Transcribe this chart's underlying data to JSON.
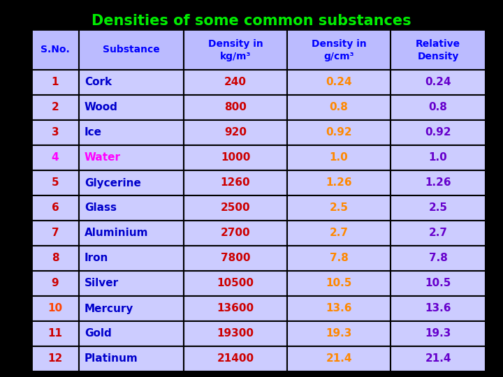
{
  "title": "Densities of some common substances",
  "title_color": "#00ee00",
  "background_color": "#000000",
  "header_bg_color": "#bbbbff",
  "row_bg_color": "#ccccff",
  "border_color": "#000000",
  "col_headers_line1": [
    "S.No.",
    "Substance",
    "Density in",
    "Density in",
    "Relative"
  ],
  "col_headers_line2": [
    "",
    "",
    "kg/m³",
    "g/cm³",
    "Density"
  ],
  "header_color": "#0000ff",
  "sno_colors": [
    "#cc0000",
    "#cc0000",
    "#cc0000",
    "#ff00ff",
    "#cc0000",
    "#cc0000",
    "#cc0000",
    "#cc0000",
    "#cc0000",
    "#ff4400",
    "#cc0000",
    "#cc0000"
  ],
  "substance_colors": [
    "#0000cc",
    "#0000cc",
    "#0000cc",
    "#ff00ff",
    "#0000cc",
    "#0000cc",
    "#0000cc",
    "#0000cc",
    "#0000cc",
    "#0000cc",
    "#0000cc",
    "#0000cc"
  ],
  "density_kg_color": "#cc0000",
  "density_gcm_color": "#ff8800",
  "relative_color": "#6600cc",
  "rows": [
    [
      1,
      "Cork",
      "240",
      "0.24",
      "0.24"
    ],
    [
      2,
      "Wood",
      "800",
      "0.8",
      "0.8"
    ],
    [
      3,
      "Ice",
      "920",
      "0.92",
      "0.92"
    ],
    [
      4,
      "Water",
      "1000",
      "1.0",
      "1.0"
    ],
    [
      5,
      "Glycerine",
      "1260",
      "1.26",
      "1.26"
    ],
    [
      6,
      "Glass",
      "2500",
      "2.5",
      "2.5"
    ],
    [
      7,
      "Aluminium",
      "2700",
      "2.7",
      "2.7"
    ],
    [
      8,
      "Iron",
      "7800",
      "7.8",
      "7.8"
    ],
    [
      9,
      "Silver",
      "10500",
      "10.5",
      "10.5"
    ],
    [
      10,
      "Mercury",
      "13600",
      "13.6",
      "13.6"
    ],
    [
      11,
      "Gold",
      "19300",
      "19.3",
      "19.3"
    ],
    [
      12,
      "Platinum",
      "21400",
      "21.4",
      "21.4"
    ]
  ]
}
